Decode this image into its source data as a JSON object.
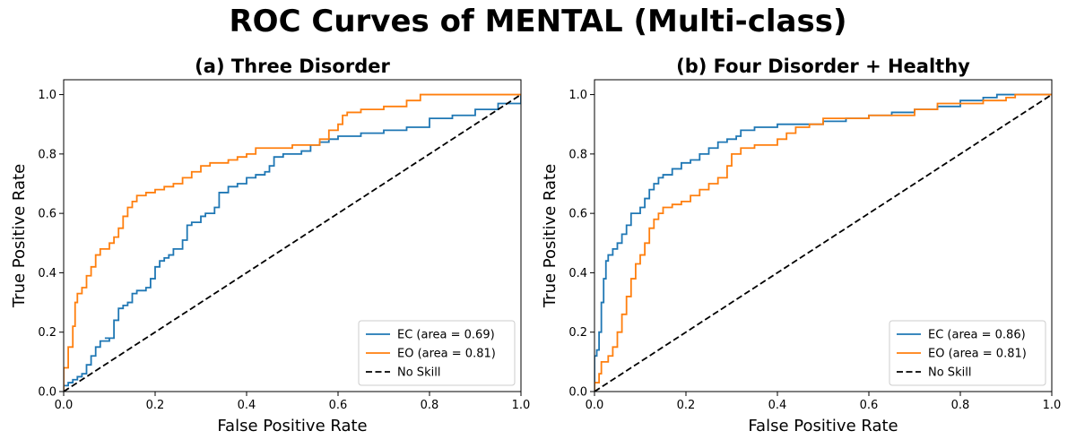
{
  "figure": {
    "title": "ROC Curves of MENTAL (Multi-class)"
  },
  "chart_data": [
    {
      "type": "line",
      "title": "(a) Three Disorder",
      "xlabel": "False Positive Rate",
      "ylabel": "True Positive Rate",
      "xlim": [
        0.0,
        1.0
      ],
      "ylim": [
        0.0,
        1.05
      ],
      "xticks": [
        "0.0",
        "0.2",
        "0.4",
        "0.6",
        "0.8",
        "1.0"
      ],
      "yticks": [
        "0.0",
        "0.2",
        "0.4",
        "0.6",
        "0.8",
        "1.0"
      ],
      "grid": false,
      "legend_position": "lower right",
      "series": [
        {
          "name": "EC (area = 0.69)",
          "color": "#1f77b4",
          "style": "step",
          "points": [
            [
              0,
              0
            ],
            [
              0,
              0.02
            ],
            [
              0.01,
              0.03
            ],
            [
              0.02,
              0.04
            ],
            [
              0.03,
              0.05
            ],
            [
              0.04,
              0.06
            ],
            [
              0.05,
              0.09
            ],
            [
              0.06,
              0.12
            ],
            [
              0.07,
              0.15
            ],
            [
              0.08,
              0.17
            ],
            [
              0.1,
              0.18
            ],
            [
              0.09,
              0.18
            ],
            [
              0.11,
              0.24
            ],
            [
              0.12,
              0.28
            ],
            [
              0.13,
              0.29
            ],
            [
              0.14,
              0.3
            ],
            [
              0.15,
              0.33
            ],
            [
              0.16,
              0.34
            ],
            [
              0.18,
              0.35
            ],
            [
              0.19,
              0.38
            ],
            [
              0.2,
              0.42
            ],
            [
              0.21,
              0.44
            ],
            [
              0.22,
              0.45
            ],
            [
              0.23,
              0.46
            ],
            [
              0.24,
              0.48
            ],
            [
              0.26,
              0.51
            ],
            [
              0.27,
              0.56
            ],
            [
              0.28,
              0.57
            ],
            [
              0.3,
              0.59
            ],
            [
              0.31,
              0.6
            ],
            [
              0.33,
              0.62
            ],
            [
              0.34,
              0.67
            ],
            [
              0.36,
              0.69
            ],
            [
              0.38,
              0.7
            ],
            [
              0.4,
              0.72
            ],
            [
              0.42,
              0.73
            ],
            [
              0.44,
              0.74
            ],
            [
              0.45,
              0.76
            ],
            [
              0.46,
              0.79
            ],
            [
              0.48,
              0.8
            ],
            [
              0.52,
              0.81
            ],
            [
              0.54,
              0.83
            ],
            [
              0.56,
              0.84
            ],
            [
              0.58,
              0.85
            ],
            [
              0.6,
              0.86
            ],
            [
              0.65,
              0.87
            ],
            [
              0.7,
              0.88
            ],
            [
              0.75,
              0.89
            ],
            [
              0.8,
              0.92
            ],
            [
              0.85,
              0.93
            ],
            [
              0.9,
              0.95
            ],
            [
              0.95,
              0.97
            ],
            [
              1.0,
              1.0
            ]
          ]
        },
        {
          "name": "EO (area = 0.81)",
          "color": "#ff7f0e",
          "style": "step",
          "points": [
            [
              0,
              0
            ],
            [
              0,
              0.08
            ],
            [
              0.01,
              0.1
            ],
            [
              0.01,
              0.15
            ],
            [
              0.02,
              0.18
            ],
            [
              0.02,
              0.22
            ],
            [
              0.025,
              0.3
            ],
            [
              0.03,
              0.33
            ],
            [
              0.04,
              0.35
            ],
            [
              0.05,
              0.39
            ],
            [
              0.06,
              0.42
            ],
            [
              0.07,
              0.46
            ],
            [
              0.08,
              0.48
            ],
            [
              0.1,
              0.5
            ],
            [
              0.11,
              0.52
            ],
            [
              0.12,
              0.55
            ],
            [
              0.13,
              0.59
            ],
            [
              0.14,
              0.62
            ],
            [
              0.15,
              0.64
            ],
            [
              0.16,
              0.66
            ],
            [
              0.18,
              0.67
            ],
            [
              0.2,
              0.68
            ],
            [
              0.22,
              0.69
            ],
            [
              0.24,
              0.7
            ],
            [
              0.26,
              0.72
            ],
            [
              0.28,
              0.74
            ],
            [
              0.3,
              0.75
            ],
            [
              0.3,
              0.76
            ],
            [
              0.32,
              0.77
            ],
            [
              0.36,
              0.78
            ],
            [
              0.38,
              0.79
            ],
            [
              0.4,
              0.8
            ],
            [
              0.42,
              0.82
            ],
            [
              0.46,
              0.82
            ],
            [
              0.5,
              0.83
            ],
            [
              0.55,
              0.83
            ],
            [
              0.56,
              0.85
            ],
            [
              0.58,
              0.88
            ],
            [
              0.6,
              0.9
            ],
            [
              0.61,
              0.93
            ],
            [
              0.62,
              0.94
            ],
            [
              0.65,
              0.95
            ],
            [
              0.7,
              0.96
            ],
            [
              0.75,
              0.98
            ],
            [
              0.78,
              1.0
            ],
            [
              1.0,
              1.0
            ]
          ]
        },
        {
          "name": "No Skill",
          "color": "#000000",
          "style": "dashed",
          "points": [
            [
              0,
              0
            ],
            [
              1,
              1
            ]
          ]
        }
      ]
    },
    {
      "type": "line",
      "title": "(b) Four Disorder + Healthy",
      "xlabel": "False Positive Rate",
      "ylabel": "True Positive Rate",
      "xlim": [
        0.0,
        1.0
      ],
      "ylim": [
        0.0,
        1.05
      ],
      "xticks": [
        "0.0",
        "0.2",
        "0.4",
        "0.6",
        "0.8",
        "1.0"
      ],
      "yticks": [
        "0.0",
        "0.2",
        "0.4",
        "0.6",
        "0.8",
        "1.0"
      ],
      "grid": false,
      "legend_position": "lower right",
      "series": [
        {
          "name": "EC (area = 0.86)",
          "color": "#1f77b4",
          "style": "step",
          "points": [
            [
              0,
              0
            ],
            [
              0,
              0.12
            ],
            [
              0.005,
              0.14
            ],
            [
              0.01,
              0.2
            ],
            [
              0.015,
              0.3
            ],
            [
              0.02,
              0.38
            ],
            [
              0.025,
              0.44
            ],
            [
              0.03,
              0.46
            ],
            [
              0.04,
              0.48
            ],
            [
              0.05,
              0.5
            ],
            [
              0.06,
              0.53
            ],
            [
              0.07,
              0.56
            ],
            [
              0.08,
              0.6
            ],
            [
              0.1,
              0.62
            ],
            [
              0.11,
              0.65
            ],
            [
              0.12,
              0.68
            ],
            [
              0.13,
              0.7
            ],
            [
              0.14,
              0.72
            ],
            [
              0.15,
              0.73
            ],
            [
              0.17,
              0.75
            ],
            [
              0.19,
              0.77
            ],
            [
              0.21,
              0.78
            ],
            [
              0.23,
              0.8
            ],
            [
              0.25,
              0.82
            ],
            [
              0.27,
              0.84
            ],
            [
              0.29,
              0.85
            ],
            [
              0.31,
              0.86
            ],
            [
              0.32,
              0.88
            ],
            [
              0.35,
              0.89
            ],
            [
              0.4,
              0.9
            ],
            [
              0.45,
              0.9
            ],
            [
              0.5,
              0.91
            ],
            [
              0.55,
              0.92
            ],
            [
              0.6,
              0.93
            ],
            [
              0.65,
              0.94
            ],
            [
              0.7,
              0.95
            ],
            [
              0.75,
              0.96
            ],
            [
              0.8,
              0.98
            ],
            [
              0.85,
              0.99
            ],
            [
              0.88,
              1.0
            ],
            [
              1.0,
              1.0
            ]
          ]
        },
        {
          "name": "EO (area = 0.81)",
          "color": "#ff7f0e",
          "style": "step",
          "points": [
            [
              0,
              0
            ],
            [
              0,
              0.03
            ],
            [
              0.01,
              0.06
            ],
            [
              0.015,
              0.1
            ],
            [
              0.03,
              0.12
            ],
            [
              0.04,
              0.15
            ],
            [
              0.05,
              0.2
            ],
            [
              0.06,
              0.26
            ],
            [
              0.07,
              0.32
            ],
            [
              0.08,
              0.38
            ],
            [
              0.09,
              0.43
            ],
            [
              0.1,
              0.46
            ],
            [
              0.11,
              0.5
            ],
            [
              0.12,
              0.55
            ],
            [
              0.13,
              0.58
            ],
            [
              0.14,
              0.6
            ],
            [
              0.15,
              0.62
            ],
            [
              0.17,
              0.63
            ],
            [
              0.19,
              0.64
            ],
            [
              0.21,
              0.66
            ],
            [
              0.23,
              0.68
            ],
            [
              0.25,
              0.7
            ],
            [
              0.27,
              0.72
            ],
            [
              0.29,
              0.76
            ],
            [
              0.3,
              0.8
            ],
            [
              0.32,
              0.82
            ],
            [
              0.35,
              0.83
            ],
            [
              0.4,
              0.85
            ],
            [
              0.42,
              0.87
            ],
            [
              0.44,
              0.89
            ],
            [
              0.47,
              0.9
            ],
            [
              0.5,
              0.92
            ],
            [
              0.6,
              0.93
            ],
            [
              0.7,
              0.95
            ],
            [
              0.75,
              0.97
            ],
            [
              0.85,
              0.98
            ],
            [
              0.9,
              0.99
            ],
            [
              0.92,
              1.0
            ],
            [
              1.0,
              1.0
            ]
          ]
        },
        {
          "name": "No Skill",
          "color": "#000000",
          "style": "dashed",
          "points": [
            [
              0,
              0
            ],
            [
              1,
              1
            ]
          ]
        }
      ]
    }
  ]
}
